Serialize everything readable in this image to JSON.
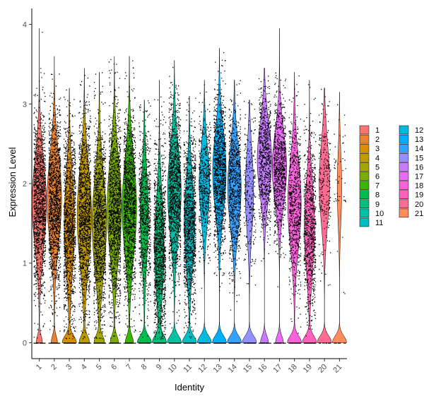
{
  "chart_data": {
    "type": "violin",
    "xlabel": "Identity",
    "ylabel": "Expression Level",
    "ylim": [
      -0.2,
      4.2
    ],
    "y_ticks": [
      0,
      1,
      2,
      3,
      4
    ],
    "categories": [
      "1",
      "2",
      "3",
      "4",
      "5",
      "6",
      "7",
      "8",
      "9",
      "10",
      "11",
      "12",
      "13",
      "14",
      "15",
      "16",
      "17",
      "18",
      "19",
      "20",
      "21"
    ],
    "legend": {
      "position": "right",
      "columns": 2,
      "entries": [
        "1",
        "2",
        "3",
        "4",
        "5",
        "6",
        "7",
        "8",
        "9",
        "10",
        "11",
        "12",
        "13",
        "14",
        "15",
        "16",
        "17",
        "18",
        "19",
        "20",
        "21"
      ]
    },
    "colors": [
      "#F8766D",
      "#EA8331",
      "#D89000",
      "#C09B00",
      "#A3A500",
      "#7CAE00",
      "#39B600",
      "#00BB4E",
      "#00BF7D",
      "#00C1A3",
      "#00BFC4",
      "#00BAE0",
      "#00B0F6",
      "#35A2FF",
      "#9590FF",
      "#C77CFF",
      "#E76BF3",
      "#FA62DB",
      "#FF62BC",
      "#FF6C91",
      "#FF8C5A"
    ],
    "series": [
      {
        "name": "1",
        "zero_fraction": 0.12,
        "body_center": 1.75,
        "body_spread": 0.55,
        "max": 3.95,
        "points": 9000
      },
      {
        "name": "2",
        "zero_fraction": 0.12,
        "body_center": 1.8,
        "body_spread": 0.55,
        "max": 3.6,
        "points": 7500
      },
      {
        "name": "3",
        "zero_fraction": 0.3,
        "body_center": 1.5,
        "body_spread": 0.6,
        "max": 3.2,
        "points": 2500
      },
      {
        "name": "4",
        "zero_fraction": 0.18,
        "body_center": 1.6,
        "body_spread": 0.6,
        "max": 3.45,
        "points": 4500
      },
      {
        "name": "5",
        "zero_fraction": 0.18,
        "body_center": 1.5,
        "body_spread": 0.6,
        "max": 3.4,
        "points": 3800
      },
      {
        "name": "6",
        "zero_fraction": 0.15,
        "body_center": 1.7,
        "body_spread": 0.6,
        "max": 3.6,
        "points": 5200
      },
      {
        "name": "7",
        "zero_fraction": 0.15,
        "body_center": 1.7,
        "body_spread": 0.6,
        "max": 3.6,
        "points": 4200
      },
      {
        "name": "8",
        "zero_fraction": 0.35,
        "body_center": 1.6,
        "body_spread": 0.55,
        "max": 3.05,
        "points": 900
      },
      {
        "name": "9",
        "zero_fraction": 0.3,
        "body_center": 1.2,
        "body_spread": 0.6,
        "max": 3.3,
        "points": 1400
      },
      {
        "name": "10",
        "zero_fraction": 0.25,
        "body_center": 1.9,
        "body_spread": 0.55,
        "max": 3.55,
        "points": 2300
      },
      {
        "name": "11",
        "zero_fraction": 0.3,
        "body_center": 1.5,
        "body_spread": 0.55,
        "max": 3.1,
        "points": 1400
      },
      {
        "name": "12",
        "zero_fraction": 0.3,
        "body_center": 2.0,
        "body_spread": 0.45,
        "max": 3.3,
        "points": 600
      },
      {
        "name": "13",
        "zero_fraction": 0.25,
        "body_center": 2.15,
        "body_spread": 0.5,
        "max": 3.7,
        "points": 1300
      },
      {
        "name": "14",
        "zero_fraction": 0.25,
        "body_center": 1.95,
        "body_spread": 0.5,
        "max": 3.3,
        "points": 900
      },
      {
        "name": "15",
        "zero_fraction": 0.35,
        "body_center": 1.9,
        "body_spread": 0.5,
        "max": 3.05,
        "points": 300
      },
      {
        "name": "16",
        "zero_fraction": 0.15,
        "body_center": 2.3,
        "body_spread": 0.45,
        "max": 3.45,
        "points": 800
      },
      {
        "name": "17",
        "zero_fraction": 0.15,
        "body_center": 2.2,
        "body_spread": 0.45,
        "max": 3.95,
        "points": 900
      },
      {
        "name": "18",
        "zero_fraction": 0.25,
        "body_center": 1.75,
        "body_spread": 0.55,
        "max": 3.4,
        "points": 800
      },
      {
        "name": "19",
        "zero_fraction": 0.3,
        "body_center": 1.45,
        "body_spread": 0.55,
        "max": 3.3,
        "points": 900
      },
      {
        "name": "20",
        "zero_fraction": 0.3,
        "body_center": 2.0,
        "body_spread": 0.5,
        "max": 3.2,
        "points": 250
      },
      {
        "name": "21",
        "zero_fraction": 0.5,
        "body_center": 1.95,
        "body_spread": 0.45,
        "max": 3.15,
        "points": 60
      }
    ]
  }
}
